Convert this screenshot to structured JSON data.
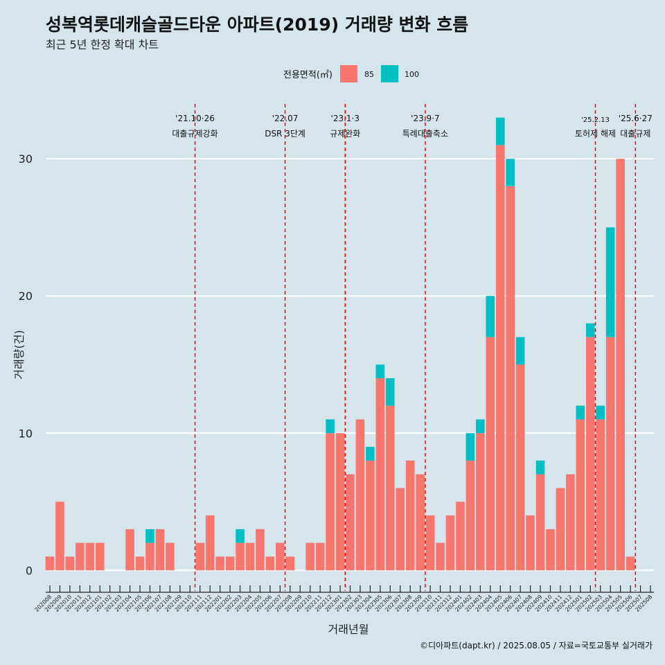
{
  "header": {
    "title": "성복역롯데캐슬골드타운 아파트(2019) 거래량 변화 흐름",
    "subtitle": "최근 5년 한정 확대 차트"
  },
  "legend": {
    "title": "전용면적(㎡)",
    "items": [
      {
        "label": "85",
        "color": "#f8766d"
      },
      {
        "label": "100",
        "color": "#00bfc4"
      }
    ]
  },
  "caption": "©디아파트(dapt.kr) / 2025.08.05 / 자료=국토교통부 실거래가",
  "chart_data": {
    "type": "bar",
    "xlabel": "거래년월",
    "ylabel": "거래량(건)",
    "yticks": [
      0,
      10,
      20,
      30
    ],
    "ylim": [
      -1.5,
      34
    ],
    "grid": true,
    "legend_position": "top",
    "categories": [
      "202008",
      "202009",
      "202010",
      "202011",
      "202012",
      "202101",
      "202102",
      "202103",
      "202104",
      "202105",
      "202106",
      "202107",
      "202108",
      "202109",
      "202110",
      "202111",
      "202112",
      "202201",
      "202202",
      "202203",
      "202204",
      "202205",
      "202206",
      "202207",
      "202208",
      "202209",
      "202210",
      "202211",
      "202212",
      "202301",
      "202302",
      "202303",
      "202304",
      "202305",
      "202306",
      "202307",
      "202308",
      "202309",
      "202310",
      "202311",
      "202312",
      "202401",
      "202402",
      "202403",
      "202404",
      "202405",
      "202406",
      "202407",
      "202408",
      "202409",
      "202410",
      "202411",
      "202412",
      "202501",
      "202502",
      "202503",
      "202504",
      "202505",
      "202506",
      "202507",
      "202508"
    ],
    "series": [
      {
        "name": "85",
        "color": "#f8766d",
        "values": [
          1,
          5,
          1,
          2,
          2,
          2,
          0,
          0,
          3,
          1,
          2,
          3,
          2,
          0,
          0,
          2,
          4,
          1,
          1,
          2,
          2,
          3,
          1,
          2,
          1,
          0,
          2,
          2,
          10,
          10,
          7,
          11,
          8,
          14,
          12,
          6,
          8,
          7,
          4,
          2,
          4,
          5,
          8,
          10,
          17,
          31,
          28,
          15,
          4,
          7,
          3,
          6,
          7,
          11,
          17,
          11,
          17,
          30,
          1,
          0,
          0
        ]
      },
      {
        "name": "100",
        "color": "#00bfc4",
        "values": [
          0,
          0,
          0,
          0,
          0,
          0,
          0,
          0,
          0,
          0,
          1,
          0,
          0,
          0,
          0,
          0,
          0,
          0,
          0,
          1,
          0,
          0,
          0,
          0,
          0,
          0,
          0,
          0,
          1,
          0,
          0,
          0,
          1,
          1,
          2,
          0,
          0,
          0,
          0,
          0,
          0,
          0,
          2,
          1,
          3,
          2,
          2,
          2,
          0,
          1,
          0,
          0,
          0,
          1,
          1,
          1,
          8,
          0,
          0,
          0,
          0
        ]
      }
    ],
    "events": [
      {
        "x": "202110",
        "date": "'21.10·26",
        "label": "대출규제강화"
      },
      {
        "x": "202207",
        "date": "'22.07",
        "label": "DSR 3단계"
      },
      {
        "x": "202301",
        "date": "'23.1·3",
        "label": "규제완화"
      },
      {
        "x": "202309",
        "date": "'23.9·7",
        "label": "특례대출축소"
      },
      {
        "x": "202502",
        "date": "'25.2.13",
        "label": "토허제 해제"
      },
      {
        "x": "202506",
        "date": "'25.6·27",
        "label": "대출규제"
      }
    ]
  }
}
